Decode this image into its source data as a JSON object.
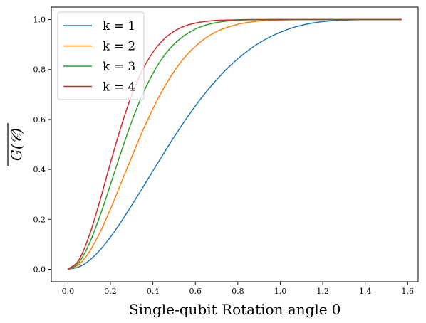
{
  "chart_data": {
    "type": "line",
    "xlabel": "Single-qubit Rotation angle θ",
    "ylabel": "G(𝒞)",
    "xlim": [
      -0.0785,
      1.6493
    ],
    "ylim": [
      -0.05,
      1.05
    ],
    "xticks": [
      0.0,
      0.2,
      0.4,
      0.6,
      0.8,
      1.0,
      1.2,
      1.4,
      1.6
    ],
    "xtick_labels": [
      "0.0",
      "0.2",
      "0.4",
      "0.6",
      "0.8",
      "1.0",
      "1.2",
      "1.4",
      "1.6"
    ],
    "yticks": [
      0.0,
      0.2,
      0.4,
      0.6,
      0.8,
      1.0
    ],
    "ytick_labels": [
      "0.0",
      "0.2",
      "0.4",
      "0.6",
      "0.8",
      "1.0"
    ],
    "legend_position": "top-left",
    "grid": false,
    "x": [
      0.0,
      0.05,
      0.1,
      0.15,
      0.2,
      0.25,
      0.3,
      0.35,
      0.4,
      0.45,
      0.5,
      0.55,
      0.6,
      0.65,
      0.7,
      0.75,
      0.8,
      0.85,
      0.9,
      0.95,
      1.0,
      1.05,
      1.1,
      1.15,
      1.2,
      1.25,
      1.3,
      1.35,
      1.4,
      1.45,
      1.5,
      1.571
    ],
    "series": [
      {
        "name": "k = 1",
        "color": "#1f77b4",
        "values": [
          0.0,
          0.009,
          0.035,
          0.076,
          0.129,
          0.19,
          0.256,
          0.324,
          0.394,
          0.463,
          0.53,
          0.594,
          0.654,
          0.709,
          0.759,
          0.804,
          0.843,
          0.877,
          0.906,
          0.93,
          0.949,
          0.965,
          0.977,
          0.986,
          0.992,
          0.996,
          0.998,
          0.999,
          1.0,
          1.0,
          1.0,
          1.0
        ]
      },
      {
        "name": "k = 2",
        "color": "#ff7f0e",
        "values": [
          0.0,
          0.018,
          0.069,
          0.146,
          0.241,
          0.345,
          0.45,
          0.551,
          0.643,
          0.724,
          0.793,
          0.849,
          0.893,
          0.927,
          0.952,
          0.969,
          0.981,
          0.989,
          0.994,
          0.997,
          0.998,
          0.999,
          1.0,
          1.0,
          1.0,
          1.0,
          1.0,
          1.0,
          1.0,
          1.0,
          1.0,
          1.0
        ]
      },
      {
        "name": "k = 3",
        "color": "#2ca02c",
        "values": [
          0.0,
          0.026,
          0.102,
          0.212,
          0.339,
          0.469,
          0.591,
          0.697,
          0.784,
          0.852,
          0.902,
          0.937,
          0.962,
          0.978,
          0.988,
          0.994,
          0.997,
          0.999,
          0.999,
          1.0,
          1.0,
          1.0,
          1.0,
          1.0,
          1.0,
          1.0,
          1.0,
          1.0,
          1.0,
          1.0,
          1.0,
          1.0
        ]
      },
      {
        "name": "k = 4",
        "color": "#d62728",
        "values": [
          0.0,
          0.035,
          0.134,
          0.273,
          0.426,
          0.571,
          0.697,
          0.796,
          0.869,
          0.92,
          0.953,
          0.974,
          0.986,
          0.993,
          0.997,
          0.998,
          0.999,
          1.0,
          1.0,
          1.0,
          1.0,
          1.0,
          1.0,
          1.0,
          1.0,
          1.0,
          1.0,
          1.0,
          1.0,
          1.0,
          1.0,
          1.0
        ]
      }
    ]
  }
}
